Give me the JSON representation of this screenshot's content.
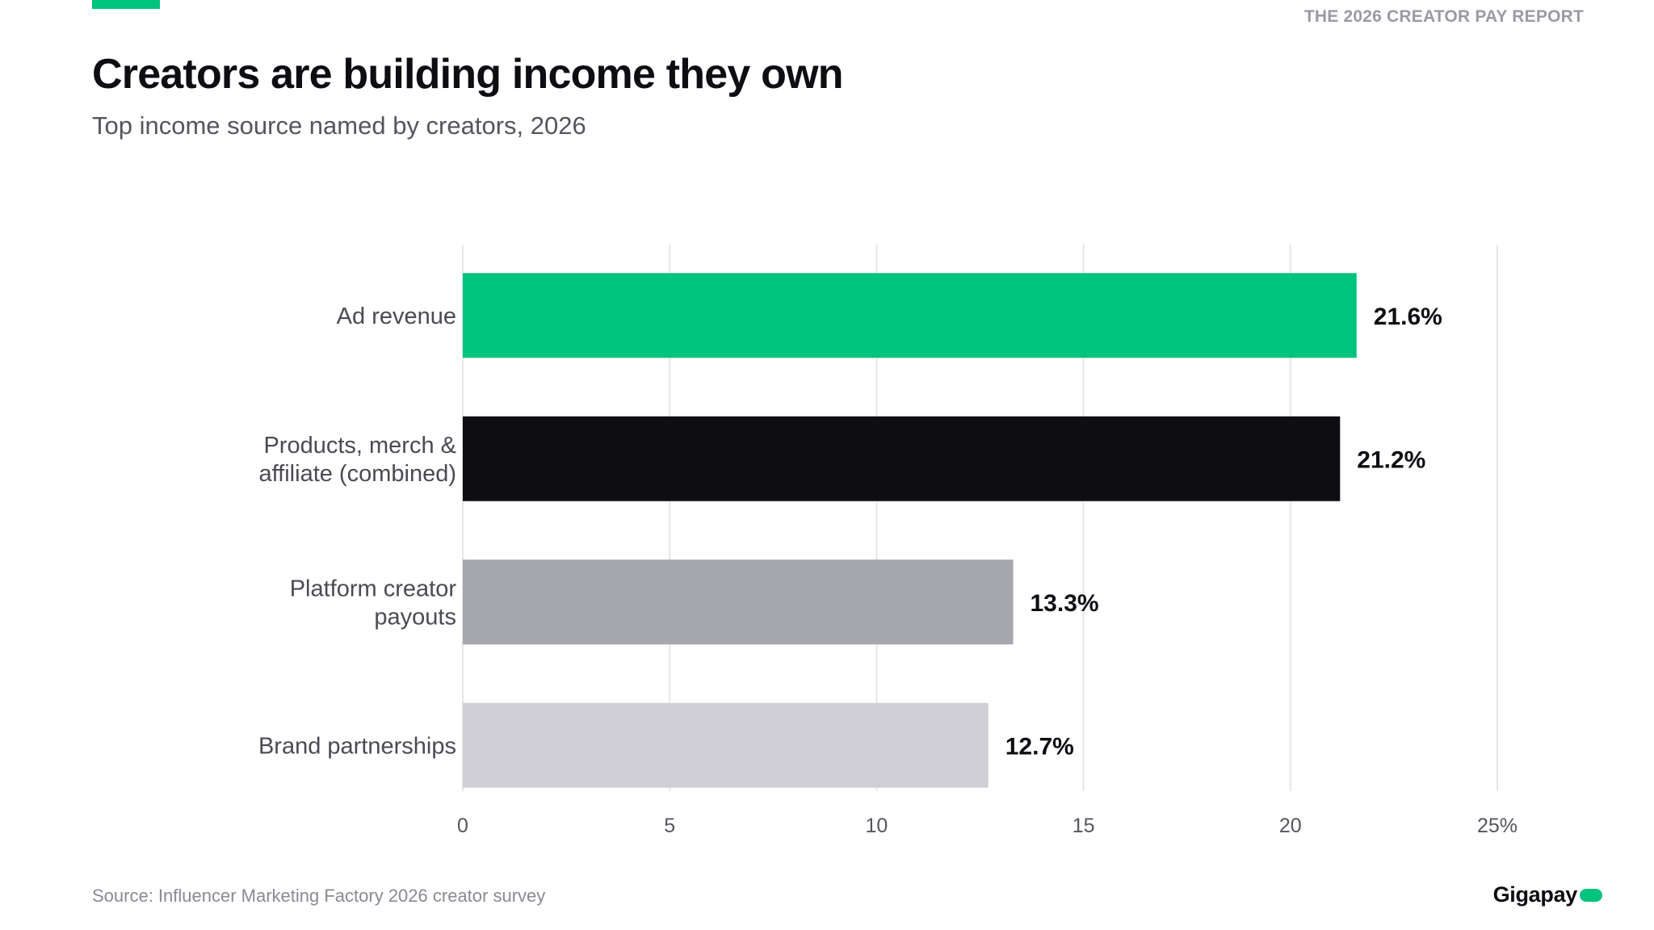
{
  "header": {
    "report_name": "THE 2026 CREATOR PAY REPORT",
    "title": "Creators are building income they own",
    "subtitle": "Top income source named by creators, 2026"
  },
  "footer": {
    "source": "Source: Influencer Marketing Factory 2026 creator survey",
    "logo_text": "Gigapay"
  },
  "colors": {
    "accent": "#00c37e",
    "text_dark": "#0d0d12",
    "grid": "#e6e6ea"
  },
  "chart_data": {
    "type": "bar",
    "orientation": "horizontal",
    "categories": [
      [
        "Ad revenue"
      ],
      [
        "Products, merch &",
        "affiliate (combined)"
      ],
      [
        "Platform creator",
        "payouts"
      ],
      [
        "Brand partnerships"
      ]
    ],
    "values": [
      21.6,
      21.2,
      13.3,
      12.7
    ],
    "value_labels": [
      "21.6%",
      "21.2%",
      "13.3%",
      "12.7%"
    ],
    "bar_colors": [
      "#00c37e",
      "#0d0d12",
      "#a6a6ae",
      "#cfcfd5"
    ],
    "xlim": [
      0,
      25
    ],
    "xticks": [
      0,
      5,
      10,
      15,
      20,
      25
    ],
    "xtick_labels": [
      "0",
      "5",
      "10",
      "15",
      "20",
      "25%"
    ],
    "grid": true
  }
}
